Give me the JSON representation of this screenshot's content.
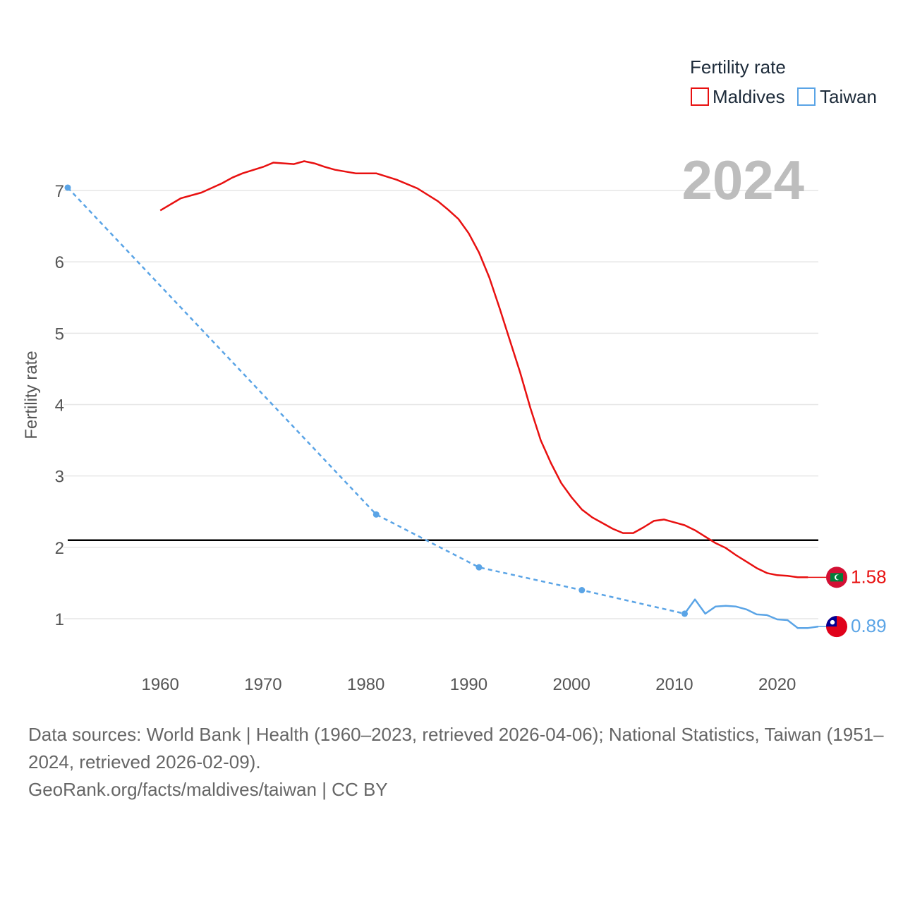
{
  "chart_data": {
    "type": "line",
    "title": "",
    "year": "2024",
    "xlabel": "",
    "ylabel": "Fertility rate",
    "xlim": [
      1951,
      2024
    ],
    "ylim": [
      0.4,
      7.6
    ],
    "x_ticks": [
      1960,
      1970,
      1980,
      1990,
      2000,
      2010,
      2020
    ],
    "y_ticks": [
      1,
      2,
      3,
      4,
      5,
      6,
      7
    ],
    "reference_line": 2.1,
    "legend": {
      "title": "Fertility rate",
      "position": "top-right",
      "entries": [
        "Maldives",
        "Taiwan"
      ]
    },
    "series": [
      {
        "name": "Maldives",
        "color": "#e81010",
        "dash": "solid",
        "end_label": "1.58",
        "flag": "maldives-flag",
        "points": [
          [
            1960,
            6.72
          ],
          [
            1962,
            6.89
          ],
          [
            1964,
            6.97
          ],
          [
            1966,
            7.1
          ],
          [
            1967,
            7.18
          ],
          [
            1968,
            7.24
          ],
          [
            1970,
            7.33
          ],
          [
            1971,
            7.39
          ],
          [
            1973,
            7.37
          ],
          [
            1974,
            7.41
          ],
          [
            1975,
            7.38
          ],
          [
            1976,
            7.33
          ],
          [
            1977,
            7.29
          ],
          [
            1979,
            7.24
          ],
          [
            1980,
            7.24
          ],
          [
            1981,
            7.24
          ],
          [
            1983,
            7.15
          ],
          [
            1985,
            7.03
          ],
          [
            1987,
            6.85
          ],
          [
            1988,
            6.73
          ],
          [
            1989,
            6.6
          ],
          [
            1990,
            6.4
          ],
          [
            1991,
            6.13
          ],
          [
            1992,
            5.78
          ],
          [
            1993,
            5.35
          ],
          [
            1994,
            4.9
          ],
          [
            1995,
            4.45
          ],
          [
            1996,
            3.95
          ],
          [
            1997,
            3.5
          ],
          [
            1998,
            3.18
          ],
          [
            1999,
            2.9
          ],
          [
            2000,
            2.7
          ],
          [
            2001,
            2.53
          ],
          [
            2002,
            2.42
          ],
          [
            2003,
            2.34
          ],
          [
            2004,
            2.26
          ],
          [
            2005,
            2.2
          ],
          [
            2006,
            2.2
          ],
          [
            2007,
            2.28
          ],
          [
            2008,
            2.37
          ],
          [
            2009,
            2.39
          ],
          [
            2010,
            2.35
          ],
          [
            2011,
            2.31
          ],
          [
            2012,
            2.24
          ],
          [
            2013,
            2.15
          ],
          [
            2014,
            2.06
          ],
          [
            2015,
            1.99
          ],
          [
            2016,
            1.89
          ],
          [
            2017,
            1.8
          ],
          [
            2018,
            1.71
          ],
          [
            2019,
            1.64
          ],
          [
            2020,
            1.61
          ],
          [
            2021,
            1.6
          ],
          [
            2022,
            1.58
          ],
          [
            2023,
            1.58
          ]
        ]
      },
      {
        "name": "Taiwan",
        "color": "#5aa4e6",
        "dash": "dashed-sparse-then-solid",
        "end_label": "0.89",
        "flag": "taiwan-flag",
        "sparse_points": [
          [
            1951,
            7.04
          ],
          [
            1981,
            2.46
          ],
          [
            1991,
            1.72
          ],
          [
            2001,
            1.4
          ],
          [
            2011,
            1.07
          ]
        ],
        "points": [
          [
            2011,
            1.07
          ],
          [
            2012,
            1.27
          ],
          [
            2013,
            1.07
          ],
          [
            2014,
            1.17
          ],
          [
            2015,
            1.18
          ],
          [
            2016,
            1.17
          ],
          [
            2017,
            1.13
          ],
          [
            2018,
            1.06
          ],
          [
            2019,
            1.05
          ],
          [
            2020,
            0.99
          ],
          [
            2021,
            0.98
          ],
          [
            2022,
            0.87
          ],
          [
            2023,
            0.87
          ],
          [
            2024,
            0.89
          ]
        ]
      }
    ]
  },
  "sources": {
    "line1": "Data sources: World Bank | Health (1960–2023, retrieved 2026-04-06); National Statistics, Taiwan (1951–2024, retrieved 2026-02-09).",
    "line2": "GeoRank.org/facts/maldives/taiwan | CC BY"
  }
}
